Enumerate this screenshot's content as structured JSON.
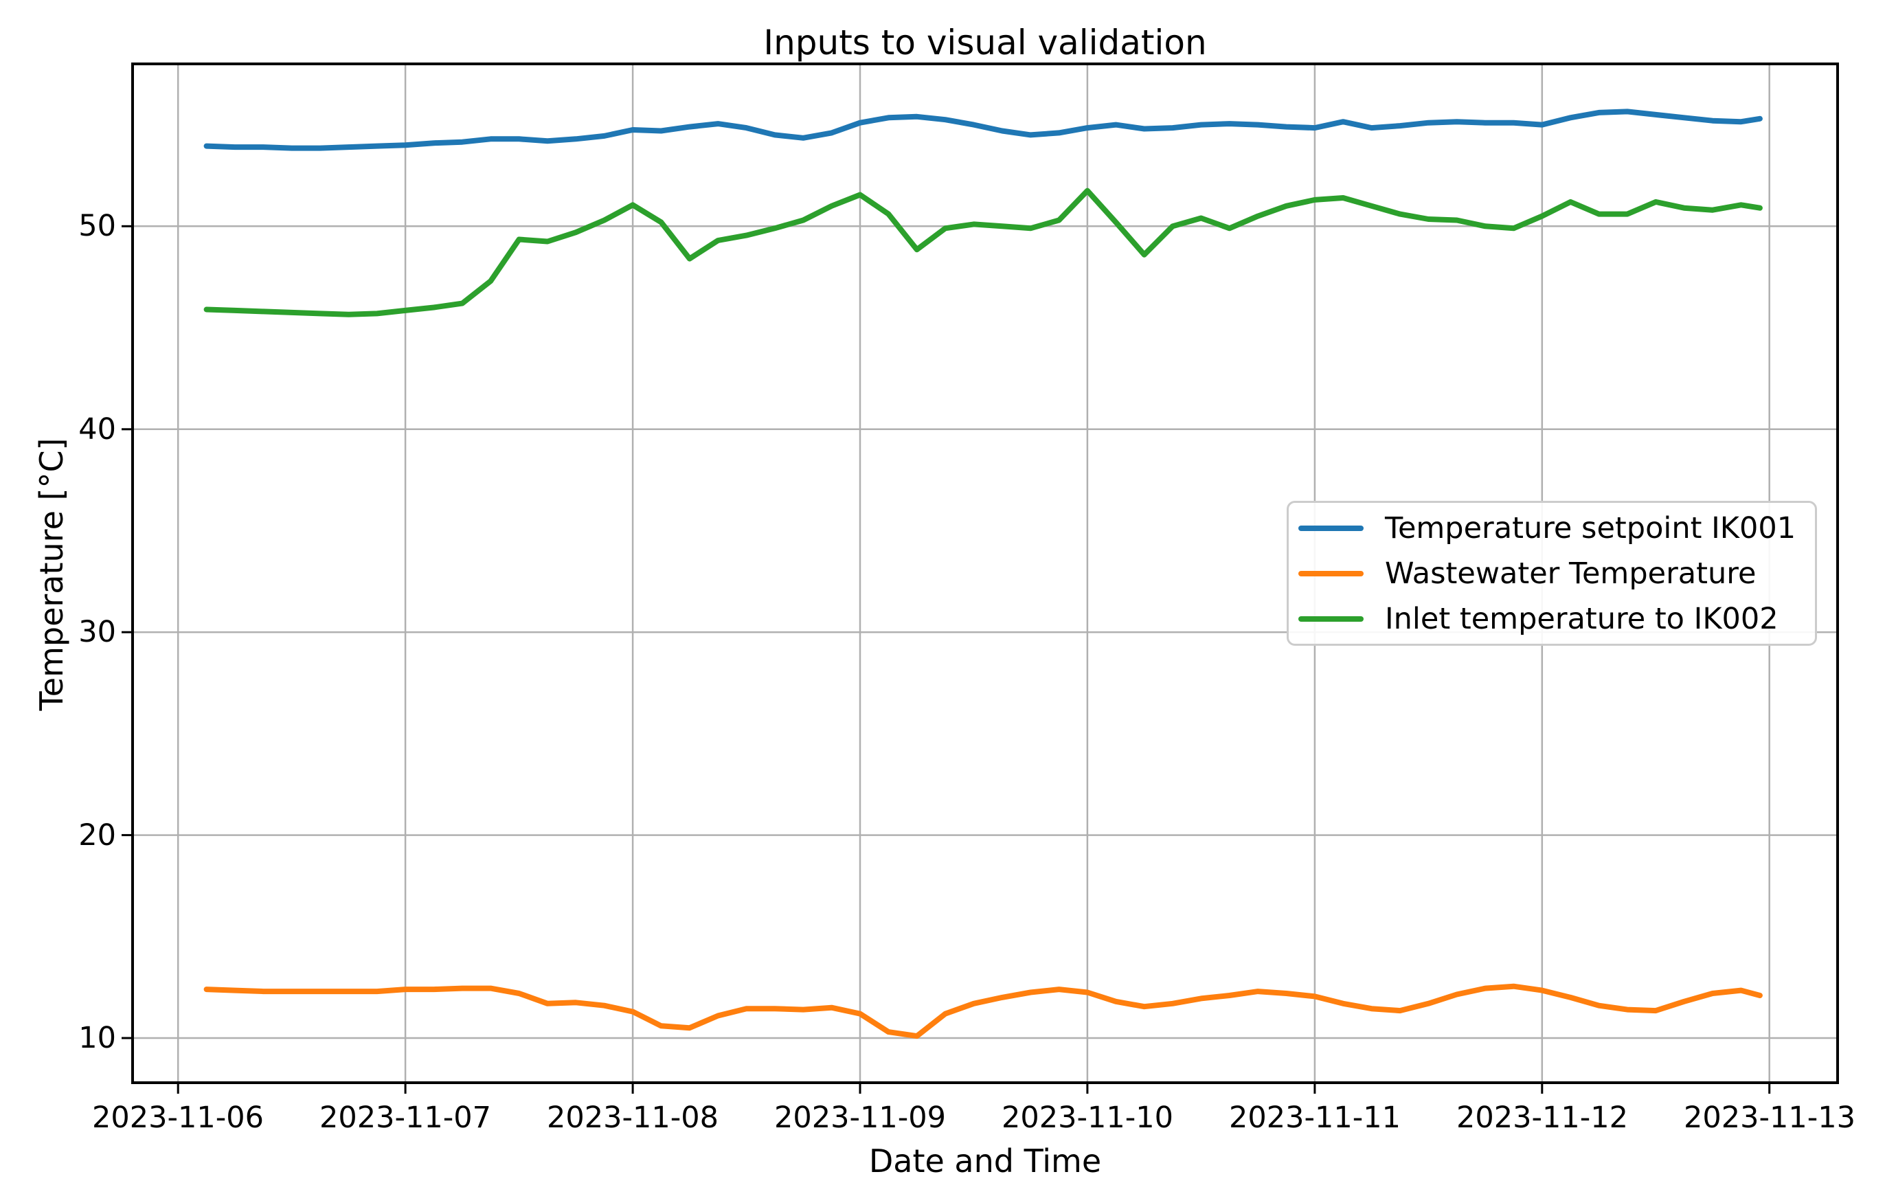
{
  "figure": {
    "title": "Inputs to visual validation",
    "x_axis_label": "Date and Time",
    "y_axis_label": "Temperature [°C]"
  },
  "x_ticks": {
    "labels": [
      "2023-11-06",
      "2023-11-07",
      "2023-11-08",
      "2023-11-09",
      "2023-11-10",
      "2023-11-11",
      "2023-11-12",
      "2023-11-13"
    ],
    "hours": [
      0,
      24,
      48,
      72,
      96,
      120,
      144,
      168
    ]
  },
  "y_ticks": {
    "labels": [
      "10",
      "20",
      "30",
      "40",
      "50"
    ],
    "values": [
      10,
      20,
      30,
      40,
      50
    ]
  },
  "legend": {
    "position": "center right",
    "entries": [
      {
        "label": "Temperature setpoint IK001",
        "color": "#1f77b4"
      },
      {
        "label": "Wastewater Temperature",
        "color": "#ff7f0e"
      },
      {
        "label": "Inlet temperature to IK002",
        "color": "#2ca02c"
      }
    ]
  },
  "colors": {
    "background": "#ffffff",
    "grid": "#b0b0b0",
    "spine": "#000000",
    "text": "#000000",
    "legend_border": "#cccccc"
  },
  "chart_data": {
    "type": "line",
    "title": "Inputs to visual validation",
    "xlabel": "Date and Time",
    "ylabel": "Temperature [°C]",
    "grid": true,
    "legend_position": "center right",
    "x_unit": "hours since 2023-11-06 00:00",
    "x_range_shown": [
      "2023-11-06",
      "2023-11-13"
    ],
    "xlim_hours": [
      -4.8,
      175.2
    ],
    "ylim": [
      7.8,
      58.0
    ],
    "x": [
      3,
      6,
      9,
      12,
      15,
      18,
      21,
      24,
      27,
      30,
      33,
      36,
      39,
      42,
      45,
      48,
      51,
      54,
      57,
      60,
      63,
      66,
      69,
      72,
      75,
      78,
      81,
      84,
      87,
      90,
      93,
      96,
      99,
      102,
      105,
      108,
      111,
      114,
      117,
      120,
      123,
      126,
      129,
      132,
      135,
      138,
      141,
      144,
      147,
      150,
      153,
      156,
      159,
      162,
      165,
      167
    ],
    "series": [
      {
        "name": "Temperature setpoint IK001",
        "color": "#1f77b4",
        "values": [
          53.95,
          53.9,
          53.9,
          53.85,
          53.85,
          53.9,
          53.95,
          54.0,
          54.1,
          54.15,
          54.3,
          54.3,
          54.2,
          54.3,
          54.45,
          54.75,
          54.7,
          54.9,
          55.05,
          54.85,
          54.5,
          54.35,
          54.6,
          55.1,
          55.35,
          55.4,
          55.25,
          55.0,
          54.7,
          54.5,
          54.6,
          54.85,
          55.0,
          54.8,
          54.85,
          55.0,
          55.05,
          55.0,
          54.9,
          54.85,
          55.15,
          54.85,
          54.95,
          55.1,
          55.15,
          55.1,
          55.1,
          55.0,
          55.35,
          55.6,
          55.65,
          55.5,
          55.35,
          55.2,
          55.15,
          55.3
        ]
      },
      {
        "name": "Wastewater Temperature",
        "color": "#ff7f0e",
        "values": [
          12.4,
          12.35,
          12.3,
          12.3,
          12.3,
          12.3,
          12.3,
          12.4,
          12.4,
          12.45,
          12.45,
          12.2,
          11.7,
          11.75,
          11.6,
          11.3,
          10.6,
          10.5,
          11.1,
          11.45,
          11.45,
          11.4,
          11.5,
          11.2,
          10.3,
          10.1,
          11.2,
          11.7,
          12.0,
          12.25,
          12.4,
          12.25,
          11.8,
          11.55,
          11.7,
          11.95,
          12.1,
          12.3,
          12.2,
          12.05,
          11.7,
          11.45,
          11.35,
          11.7,
          12.15,
          12.45,
          12.55,
          12.35,
          12.0,
          11.6,
          11.4,
          11.35,
          11.8,
          12.2,
          12.35,
          12.1
        ]
      },
      {
        "name": "Inlet temperature to IK002",
        "color": "#2ca02c",
        "values": [
          45.9,
          45.85,
          45.8,
          45.75,
          45.7,
          45.65,
          45.7,
          45.85,
          46.0,
          46.2,
          47.3,
          49.35,
          49.25,
          49.7,
          50.3,
          51.05,
          50.2,
          48.4,
          49.3,
          49.55,
          49.9,
          50.3,
          51.0,
          51.55,
          50.6,
          48.85,
          49.9,
          50.1,
          50.0,
          49.9,
          50.3,
          51.75,
          50.2,
          48.6,
          50.0,
          50.4,
          49.9,
          50.5,
          51.0,
          51.3,
          51.4,
          51.0,
          50.6,
          50.35,
          50.3,
          50.0,
          49.9,
          50.5,
          51.2,
          50.6,
          50.6,
          51.2,
          50.9,
          50.8,
          51.05,
          50.9
        ]
      }
    ]
  }
}
